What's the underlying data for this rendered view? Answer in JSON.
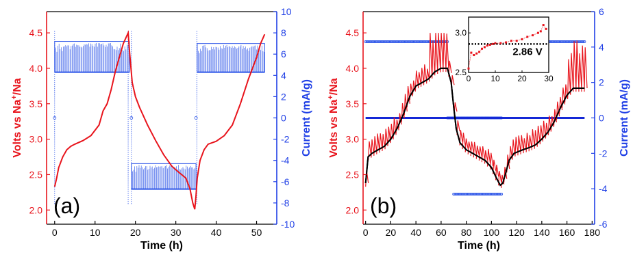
{
  "colors": {
    "left_axis": "#e8141c",
    "right_axis": "#1f3fe6",
    "current_points": "#2e56e8",
    "voltage_line": "#e8141c",
    "fit_line": "#000000",
    "reference_line": "#000000"
  },
  "chart_data": [
    {
      "panel_label": "(a)",
      "type": "line",
      "title": "",
      "xlabel": "Time (h)",
      "ylabel_left_parts": [
        "Volts vs Na",
        "+",
        "/Na"
      ],
      "ylabel_right": "Current (mA/g)",
      "xlim": [
        -2,
        55
      ],
      "ylim_left": [
        1.8,
        4.8
      ],
      "ylim_right": [
        -10,
        10
      ],
      "x_ticks": [
        0,
        10,
        20,
        30,
        40,
        50
      ],
      "y_left_ticks": [
        "2.0",
        "2.5",
        "3.0",
        "3.5",
        "4.0",
        "4.5"
      ],
      "y_right_ticks": [
        -10,
        -8,
        -6,
        -4,
        -2,
        0,
        2,
        4,
        6,
        8,
        10
      ],
      "series": [
        {
          "axis": "left",
          "style": "red-line",
          "x": [
            0,
            0.5,
            1,
            2,
            3,
            4,
            5,
            7,
            9,
            11,
            12,
            13,
            14,
            15,
            16,
            17,
            17.8,
            18.2,
            18.6,
            19.2,
            20,
            21,
            23,
            25,
            27,
            29,
            31,
            32.5,
            33.5,
            34.2,
            34.7,
            35,
            35.3,
            36,
            37,
            38,
            39,
            40,
            42,
            44,
            46,
            48,
            50,
            51,
            52
          ],
          "values": [
            2.33,
            2.45,
            2.6,
            2.75,
            2.85,
            2.9,
            2.93,
            2.98,
            3.05,
            3.2,
            3.4,
            3.5,
            3.7,
            3.95,
            4.15,
            4.35,
            4.45,
            4.5,
            4.2,
            3.8,
            3.6,
            3.45,
            3.2,
            2.98,
            2.78,
            2.62,
            2.52,
            2.45,
            2.3,
            2.1,
            2.01,
            2.2,
            2.45,
            2.7,
            2.85,
            2.93,
            2.95,
            2.97,
            3.05,
            3.2,
            3.5,
            3.85,
            4.15,
            4.35,
            4.48
          ]
        },
        {
          "axis": "right",
          "style": "blue-band",
          "segments": [
            {
              "x": [
                0,
                18.5
              ],
              "low": 4.3,
              "high": 7.2
            },
            {
              "x": [
                19,
                35
              ],
              "low": -6.7,
              "high": -4.3
            },
            {
              "x": [
                35.3,
                52
              ],
              "low": 4.3,
              "high": 7.0
            }
          ],
          "spikes_x": [
            0,
            18.2,
            19,
            35.2
          ],
          "zero_points_x": [
            0,
            19,
            35
          ]
        }
      ]
    },
    {
      "panel_label": "(b)",
      "type": "line",
      "title": "",
      "xlabel": "Time (h)",
      "ylabel_left_parts": [
        "Volts vs Na",
        "+",
        "/Na"
      ],
      "ylabel_right": "Current (mA/g)",
      "xlim": [
        -2,
        182
      ],
      "ylim_left": [
        1.8,
        4.8
      ],
      "ylim_right": [
        -6,
        6
      ],
      "x_ticks": [
        0,
        20,
        40,
        60,
        80,
        100,
        120,
        140,
        160,
        180
      ],
      "y_left_ticks": [
        "2.0",
        "2.5",
        "3.0",
        "3.5",
        "4.0",
        "4.5"
      ],
      "y_right_ticks": [
        -6,
        -4,
        -2,
        0,
        2,
        4,
        6
      ],
      "series": [
        {
          "axis": "left",
          "style": "black-line",
          "x": [
            0,
            2,
            5,
            10,
            15,
            20,
            25,
            30,
            35,
            40,
            45,
            50,
            55,
            60,
            65,
            68,
            70,
            72,
            75,
            80,
            85,
            90,
            95,
            100,
            104,
            107,
            109,
            111,
            114,
            118,
            125,
            130,
            135,
            140,
            145,
            150,
            155,
            160,
            165,
            168,
            170,
            174
          ],
          "values": [
            2.38,
            2.75,
            2.8,
            2.85,
            2.9,
            3.0,
            3.15,
            3.35,
            3.6,
            3.75,
            3.8,
            3.85,
            3.95,
            4.0,
            4.0,
            3.8,
            3.45,
            3.15,
            2.95,
            2.85,
            2.8,
            2.75,
            2.7,
            2.6,
            2.45,
            2.35,
            2.38,
            2.5,
            2.7,
            2.8,
            2.85,
            2.88,
            2.92,
            3.0,
            3.1,
            3.25,
            3.45,
            3.62,
            3.72,
            3.72,
            3.72,
            3.72
          ]
        },
        {
          "axis": "left",
          "style": "red-oscillation",
          "x_range": [
            0,
            174
          ],
          "amplitude_note": "pulses above the black curve"
        },
        {
          "axis": "right",
          "style": "blue-markers",
          "segments": [
            {
              "x": [
                0,
                65
              ],
              "value": 4.3
            },
            {
              "x": [
                65,
                108
              ],
              "value": 0
            },
            {
              "x": [
                70,
                108
              ],
              "value": -4.3
            },
            {
              "x": [
                108,
                174
              ],
              "value": 4.3
            }
          ],
          "zero_line_x": [
            0,
            174
          ]
        }
      ],
      "inset": {
        "xlim": [
          0,
          30
        ],
        "ylim": [
          2.5,
          3.2
        ],
        "x_ticks": [
          0,
          10,
          20,
          30
        ],
        "y_ticks": [
          "2.5",
          "3.0"
        ],
        "reference_value": 2.86,
        "reference_label": "2.86 V",
        "x": [
          0,
          1,
          2,
          3,
          4,
          5,
          6,
          7,
          8,
          9,
          10,
          12,
          14,
          16,
          18,
          20,
          22,
          24,
          26,
          27,
          28,
          29
        ],
        "values": [
          2.55,
          2.75,
          2.72,
          2.74,
          2.76,
          2.8,
          2.82,
          2.84,
          2.85,
          2.86,
          2.87,
          2.87,
          2.88,
          2.9,
          2.9,
          2.92,
          2.95,
          2.97,
          3.0,
          3.02,
          3.1,
          3.05
        ]
      }
    }
  ]
}
